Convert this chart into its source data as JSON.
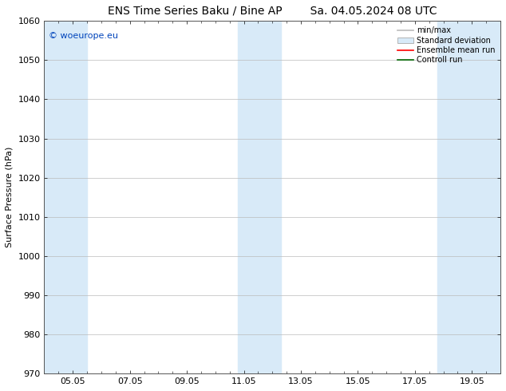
{
  "title_left": "ENS Time Series Baku / Bine AP",
  "title_right": "Sa. 04.05.2024 08 UTC",
  "ylabel": "Surface Pressure (hPa)",
  "ylim": [
    970,
    1060
  ],
  "yticks": [
    970,
    980,
    990,
    1000,
    1010,
    1020,
    1030,
    1040,
    1050,
    1060
  ],
  "xlim": [
    0,
    16
  ],
  "xtick_labels": [
    "05.05",
    "07.05",
    "09.05",
    "11.05",
    "13.05",
    "15.05",
    "17.05",
    "19.05"
  ],
  "xtick_positions": [
    1,
    3,
    5,
    7,
    9,
    11,
    13,
    15
  ],
  "watermark": "© woeurope.eu",
  "watermark_color": "#0044bb",
  "shaded_bands": [
    {
      "x_start": 0.0,
      "x_end": 1.5,
      "color": "#d8eaf8"
    },
    {
      "x_start": 6.8,
      "x_end": 8.3,
      "color": "#d8eaf8"
    },
    {
      "x_start": 13.8,
      "x_end": 16.0,
      "color": "#d8eaf8"
    }
  ],
  "legend_items": [
    {
      "label": "min/max",
      "color": "#bbbbbb",
      "type": "line"
    },
    {
      "label": "Standard deviation",
      "color": "#d8eaf8",
      "type": "patch"
    },
    {
      "label": "Ensemble mean run",
      "color": "#ff0000",
      "type": "line"
    },
    {
      "label": "Controll run",
      "color": "#006600",
      "type": "line"
    }
  ],
  "background_color": "#ffffff",
  "plot_bg_color": "#ffffff",
  "grid_color": "#bbbbbb",
  "title_fontsize": 10,
  "axis_fontsize": 8,
  "legend_fontsize": 7,
  "watermark_fontsize": 8
}
